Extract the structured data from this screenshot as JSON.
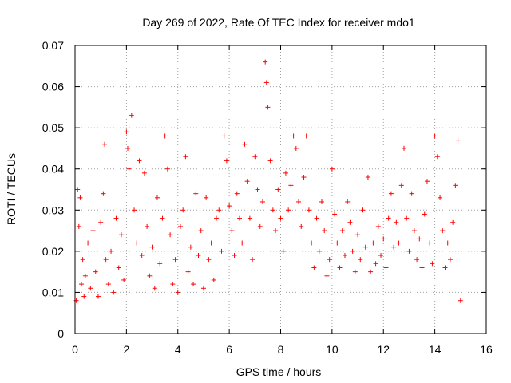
{
  "chart_data": {
    "type": "scatter",
    "title": "Day 269 of 2022, Rate Of TEC Index for receiver mdo1",
    "xlabel": "GPS time / hours",
    "ylabel": "ROTI / TECUs",
    "xlim": [
      0,
      16
    ],
    "ylim": [
      0,
      0.07
    ],
    "xticks": [
      0,
      2,
      4,
      6,
      8,
      10,
      12,
      14,
      16
    ],
    "yticks": [
      0,
      0.01,
      0.02,
      0.03,
      0.04,
      0.05,
      0.06,
      0.07
    ],
    "xtick_labels": [
      "0",
      "2",
      "4",
      "6",
      "8",
      "10",
      "12",
      "14",
      "16"
    ],
    "ytick_labels": [
      "0",
      "0.01",
      "0.02",
      "0.03",
      "0.04",
      "0.05",
      "0.06",
      "0.07"
    ],
    "grid": true,
    "marker": "+",
    "series": [
      {
        "name": "ROTI",
        "color": "#ff0000",
        "x": [
          0.05,
          0.1,
          0.15,
          0.2,
          0.25,
          0.3,
          0.35,
          0.4,
          0.5,
          0.6,
          0.7,
          0.8,
          0.9,
          1.0,
          1.1,
          1.15,
          1.2,
          1.3,
          1.4,
          1.5,
          1.6,
          1.7,
          1.8,
          1.9,
          2.0,
          2.05,
          2.1,
          2.2,
          2.3,
          2.4,
          2.5,
          2.6,
          2.7,
          2.8,
          2.9,
          3.0,
          3.1,
          3.2,
          3.3,
          3.4,
          3.5,
          3.6,
          3.7,
          3.8,
          3.9,
          4.0,
          4.1,
          4.2,
          4.3,
          4.4,
          4.5,
          4.6,
          4.7,
          4.8,
          4.9,
          5.0,
          5.1,
          5.2,
          5.3,
          5.4,
          5.5,
          5.6,
          5.7,
          5.8,
          5.9,
          6.0,
          6.1,
          6.2,
          6.3,
          6.4,
          6.5,
          6.6,
          6.7,
          6.8,
          6.9,
          7.0,
          7.1,
          7.2,
          7.3,
          7.4,
          7.45,
          7.5,
          7.6,
          7.7,
          7.8,
          7.9,
          8.0,
          8.1,
          8.2,
          8.3,
          8.4,
          8.5,
          8.6,
          8.7,
          8.8,
          8.9,
          9.0,
          9.1,
          9.2,
          9.3,
          9.4,
          9.5,
          9.6,
          9.7,
          9.8,
          9.9,
          10.0,
          10.1,
          10.2,
          10.3,
          10.4,
          10.5,
          10.6,
          10.7,
          10.8,
          10.9,
          11.0,
          11.1,
          11.2,
          11.3,
          11.4,
          11.5,
          11.6,
          11.7,
          11.8,
          11.9,
          12.0,
          12.1,
          12.2,
          12.3,
          12.4,
          12.5,
          12.6,
          12.7,
          12.8,
          12.9,
          13.0,
          13.1,
          13.2,
          13.3,
          13.4,
          13.5,
          13.6,
          13.7,
          13.8,
          13.9,
          14.0,
          14.1,
          14.2,
          14.3,
          14.4,
          14.5,
          14.6,
          14.7,
          14.8,
          14.9,
          15.0
        ],
        "y": [
          0.008,
          0.035,
          0.026,
          0.033,
          0.012,
          0.018,
          0.009,
          0.014,
          0.022,
          0.011,
          0.025,
          0.015,
          0.009,
          0.027,
          0.034,
          0.046,
          0.018,
          0.012,
          0.02,
          0.01,
          0.028,
          0.016,
          0.024,
          0.013,
          0.049,
          0.045,
          0.04,
          0.053,
          0.03,
          0.022,
          0.042,
          0.019,
          0.039,
          0.026,
          0.014,
          0.021,
          0.011,
          0.033,
          0.017,
          0.028,
          0.048,
          0.04,
          0.024,
          0.012,
          0.018,
          0.01,
          0.026,
          0.03,
          0.043,
          0.015,
          0.021,
          0.012,
          0.034,
          0.019,
          0.025,
          0.011,
          0.033,
          0.018,
          0.022,
          0.013,
          0.028,
          0.03,
          0.02,
          0.048,
          0.042,
          0.031,
          0.025,
          0.019,
          0.034,
          0.028,
          0.022,
          0.046,
          0.037,
          0.028,
          0.018,
          0.043,
          0.035,
          0.026,
          0.032,
          0.066,
          0.061,
          0.055,
          0.042,
          0.03,
          0.025,
          0.035,
          0.028,
          0.02,
          0.039,
          0.03,
          0.036,
          0.048,
          0.045,
          0.032,
          0.026,
          0.038,
          0.048,
          0.03,
          0.022,
          0.016,
          0.028,
          0.02,
          0.032,
          0.025,
          0.014,
          0.018,
          0.04,
          0.029,
          0.022,
          0.016,
          0.025,
          0.019,
          0.032,
          0.027,
          0.02,
          0.015,
          0.024,
          0.018,
          0.03,
          0.021,
          0.038,
          0.015,
          0.022,
          0.017,
          0.026,
          0.019,
          0.023,
          0.016,
          0.028,
          0.034,
          0.021,
          0.027,
          0.022,
          0.036,
          0.045,
          0.028,
          0.02,
          0.034,
          0.025,
          0.018,
          0.023,
          0.016,
          0.029,
          0.037,
          0.022,
          0.017,
          0.048,
          0.043,
          0.033,
          0.025,
          0.016,
          0.022,
          0.018,
          0.027,
          0.036,
          0.047,
          0.008
        ]
      }
    ]
  }
}
